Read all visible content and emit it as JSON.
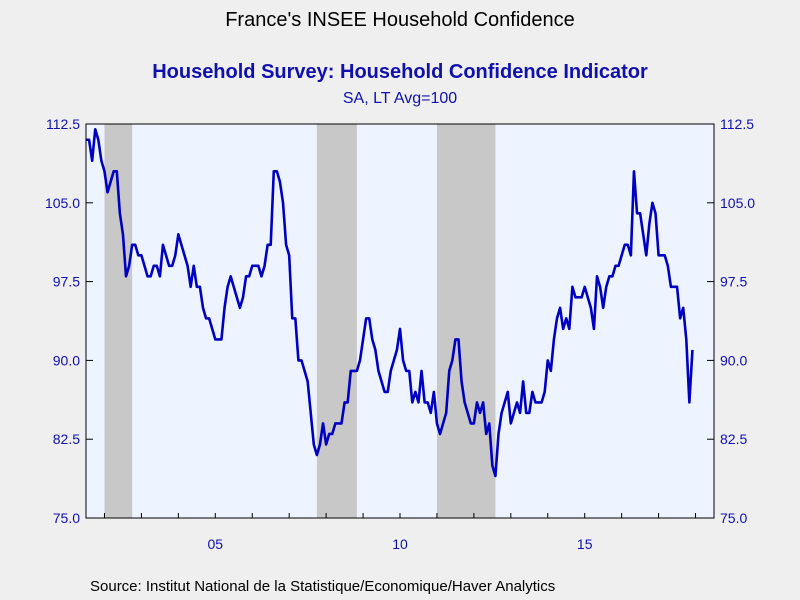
{
  "title": "France's INSEE Household Confidence",
  "subtitle": "Household Survey: Household Confidence Indicator",
  "units": "SA, LT Avg=100",
  "source": "Source:  Institut National de la Statistique/Economique/Haver Analytics",
  "colors": {
    "line": "#0000c0",
    "plot_bg": "#eef4ff",
    "recession": "#c8c8c8",
    "text": "#1010b0",
    "page_bg": "#efefef"
  },
  "chart_data": {
    "type": "line",
    "title": "Household Survey: Household Confidence Indicator",
    "xlim": [
      "2001-07",
      "2018-07"
    ],
    "ylim": [
      75.0,
      112.5
    ],
    "y_ticks": [
      "112.5",
      "105.0",
      "97.5",
      "90.0",
      "82.5",
      "75.0"
    ],
    "x_ticks": [
      {
        "date": "2005-01",
        "label": "05"
      },
      {
        "date": "2010-01",
        "label": "10"
      },
      {
        "date": "2015-01",
        "label": "15"
      }
    ],
    "right_axis": true,
    "recession_bands": [
      {
        "start": "2002-01",
        "end": "2002-10"
      },
      {
        "start": "2007-10",
        "end": "2008-11"
      },
      {
        "start": "2011-01",
        "end": "2012-08"
      }
    ],
    "series": [
      {
        "points": [
          [
            "2001-07",
            111
          ],
          [
            "2001-08",
            111
          ],
          [
            "2001-09",
            109
          ],
          [
            "2001-10",
            112
          ],
          [
            "2001-11",
            111
          ],
          [
            "2001-12",
            109
          ],
          [
            "2002-01",
            108
          ],
          [
            "2002-02",
            106
          ],
          [
            "2002-03",
            107
          ],
          [
            "2002-04",
            108
          ],
          [
            "2002-05",
            108
          ],
          [
            "2002-06",
            104
          ],
          [
            "2002-07",
            102
          ],
          [
            "2002-08",
            98
          ],
          [
            "2002-09",
            99
          ],
          [
            "2002-10",
            101
          ],
          [
            "2002-11",
            101
          ],
          [
            "2002-12",
            100
          ],
          [
            "2003-01",
            100
          ],
          [
            "2003-02",
            99
          ],
          [
            "2003-03",
            98
          ],
          [
            "2003-04",
            98
          ],
          [
            "2003-05",
            99
          ],
          [
            "2003-06",
            99
          ],
          [
            "2003-07",
            98
          ],
          [
            "2003-08",
            101
          ],
          [
            "2003-09",
            100
          ],
          [
            "2003-10",
            99
          ],
          [
            "2003-11",
            99
          ],
          [
            "2003-12",
            100
          ],
          [
            "2004-01",
            102
          ],
          [
            "2004-02",
            101
          ],
          [
            "2004-03",
            100
          ],
          [
            "2004-04",
            99
          ],
          [
            "2004-05",
            97
          ],
          [
            "2004-06",
            99
          ],
          [
            "2004-07",
            97
          ],
          [
            "2004-08",
            97
          ],
          [
            "2004-09",
            95
          ],
          [
            "2004-10",
            94
          ],
          [
            "2004-11",
            94
          ],
          [
            "2004-12",
            93
          ],
          [
            "2005-01",
            92
          ],
          [
            "2005-02",
            92
          ],
          [
            "2005-03",
            92
          ],
          [
            "2005-04",
            95
          ],
          [
            "2005-05",
            97
          ],
          [
            "2005-06",
            98
          ],
          [
            "2005-07",
            97
          ],
          [
            "2005-08",
            96
          ],
          [
            "2005-09",
            95
          ],
          [
            "2005-10",
            96
          ],
          [
            "2005-11",
            98
          ],
          [
            "2005-12",
            98
          ],
          [
            "2006-01",
            99
          ],
          [
            "2006-02",
            99
          ],
          [
            "2006-03",
            99
          ],
          [
            "2006-04",
            98
          ],
          [
            "2006-05",
            99
          ],
          [
            "2006-06",
            101
          ],
          [
            "2006-07",
            101
          ],
          [
            "2006-08",
            108
          ],
          [
            "2006-09",
            108
          ],
          [
            "2006-10",
            107
          ],
          [
            "2006-11",
            105
          ],
          [
            "2006-12",
            101
          ],
          [
            "2007-01",
            100
          ],
          [
            "2007-02",
            94
          ],
          [
            "2007-03",
            94
          ],
          [
            "2007-04",
            90
          ],
          [
            "2007-05",
            90
          ],
          [
            "2007-06",
            89
          ],
          [
            "2007-07",
            88
          ],
          [
            "2007-08",
            85
          ],
          [
            "2007-09",
            82
          ],
          [
            "2007-10",
            81
          ],
          [
            "2007-11",
            82
          ],
          [
            "2007-12",
            84
          ],
          [
            "2008-01",
            82
          ],
          [
            "2008-02",
            83
          ],
          [
            "2008-03",
            83
          ],
          [
            "2008-04",
            84
          ],
          [
            "2008-05",
            84
          ],
          [
            "2008-06",
            84
          ],
          [
            "2008-07",
            86
          ],
          [
            "2008-08",
            86
          ],
          [
            "2008-09",
            89
          ],
          [
            "2008-10",
            89
          ],
          [
            "2008-11",
            89
          ],
          [
            "2008-12",
            90
          ],
          [
            "2009-01",
            92
          ],
          [
            "2009-02",
            94
          ],
          [
            "2009-03",
            94
          ],
          [
            "2009-04",
            92
          ],
          [
            "2009-05",
            91
          ],
          [
            "2009-06",
            89
          ],
          [
            "2009-07",
            88
          ],
          [
            "2009-08",
            87
          ],
          [
            "2009-09",
            87
          ],
          [
            "2009-10",
            89
          ],
          [
            "2009-11",
            90
          ],
          [
            "2009-12",
            91
          ],
          [
            "2010-01",
            93
          ],
          [
            "2010-02",
            90
          ],
          [
            "2010-03",
            89
          ],
          [
            "2010-04",
            89
          ],
          [
            "2010-05",
            86
          ],
          [
            "2010-06",
            87
          ],
          [
            "2010-07",
            86
          ],
          [
            "2010-08",
            89
          ],
          [
            "2010-09",
            86
          ],
          [
            "2010-10",
            86
          ],
          [
            "2010-11",
            85
          ],
          [
            "2010-12",
            87
          ],
          [
            "2011-01",
            84
          ],
          [
            "2011-02",
            83
          ],
          [
            "2011-03",
            84
          ],
          [
            "2011-04",
            85
          ],
          [
            "2011-05",
            89
          ],
          [
            "2011-06",
            90
          ],
          [
            "2011-07",
            92
          ],
          [
            "2011-08",
            92
          ],
          [
            "2011-09",
            88
          ],
          [
            "2011-10",
            86
          ],
          [
            "2011-11",
            85
          ],
          [
            "2011-12",
            84
          ],
          [
            "2012-01",
            84
          ],
          [
            "2012-02",
            86
          ],
          [
            "2012-03",
            85
          ],
          [
            "2012-04",
            86
          ],
          [
            "2012-05",
            83
          ],
          [
            "2012-06",
            84
          ],
          [
            "2012-07",
            80
          ],
          [
            "2012-08",
            79
          ],
          [
            "2012-09",
            83
          ],
          [
            "2012-10",
            85
          ],
          [
            "2012-11",
            86
          ],
          [
            "2012-12",
            87
          ],
          [
            "2013-01",
            84
          ],
          [
            "2013-02",
            85
          ],
          [
            "2013-03",
            86
          ],
          [
            "2013-04",
            85
          ],
          [
            "2013-05",
            88
          ],
          [
            "2013-06",
            85
          ],
          [
            "2013-07",
            85
          ],
          [
            "2013-08",
            87
          ],
          [
            "2013-09",
            86
          ],
          [
            "2013-10",
            86
          ],
          [
            "2013-11",
            86
          ],
          [
            "2013-12",
            87
          ],
          [
            "2014-01",
            90
          ],
          [
            "2014-02",
            89
          ],
          [
            "2014-03",
            92
          ],
          [
            "2014-04",
            94
          ],
          [
            "2014-05",
            95
          ],
          [
            "2014-06",
            93
          ],
          [
            "2014-07",
            94
          ],
          [
            "2014-08",
            93
          ],
          [
            "2014-09",
            97
          ],
          [
            "2014-10",
            96
          ],
          [
            "2014-11",
            96
          ],
          [
            "2014-12",
            96
          ],
          [
            "2015-01",
            97
          ],
          [
            "2015-02",
            96
          ],
          [
            "2015-03",
            95
          ],
          [
            "2015-04",
            93
          ],
          [
            "2015-05",
            98
          ],
          [
            "2015-06",
            97
          ],
          [
            "2015-07",
            95
          ],
          [
            "2015-08",
            97
          ],
          [
            "2015-09",
            98
          ],
          [
            "2015-10",
            98
          ],
          [
            "2015-11",
            99
          ],
          [
            "2015-12",
            99
          ],
          [
            "2016-01",
            100
          ],
          [
            "2016-02",
            101
          ],
          [
            "2016-03",
            101
          ],
          [
            "2016-04",
            100
          ],
          [
            "2016-05",
            108
          ],
          [
            "2016-06",
            104
          ],
          [
            "2016-07",
            104
          ],
          [
            "2016-08",
            102
          ],
          [
            "2016-09",
            100
          ],
          [
            "2016-10",
            103
          ],
          [
            "2016-11",
            105
          ],
          [
            "2016-12",
            104
          ],
          [
            "2017-01",
            100
          ],
          [
            "2017-02",
            100
          ],
          [
            "2017-03",
            100
          ],
          [
            "2017-04",
            99
          ],
          [
            "2017-05",
            97
          ],
          [
            "2017-06",
            97
          ],
          [
            "2017-07",
            97
          ],
          [
            "2017-08",
            94
          ],
          [
            "2017-09",
            95
          ],
          [
            "2017-10",
            92
          ],
          [
            "2017-11",
            86
          ],
          [
            "2017-12",
            91
          ]
        ]
      }
    ]
  }
}
